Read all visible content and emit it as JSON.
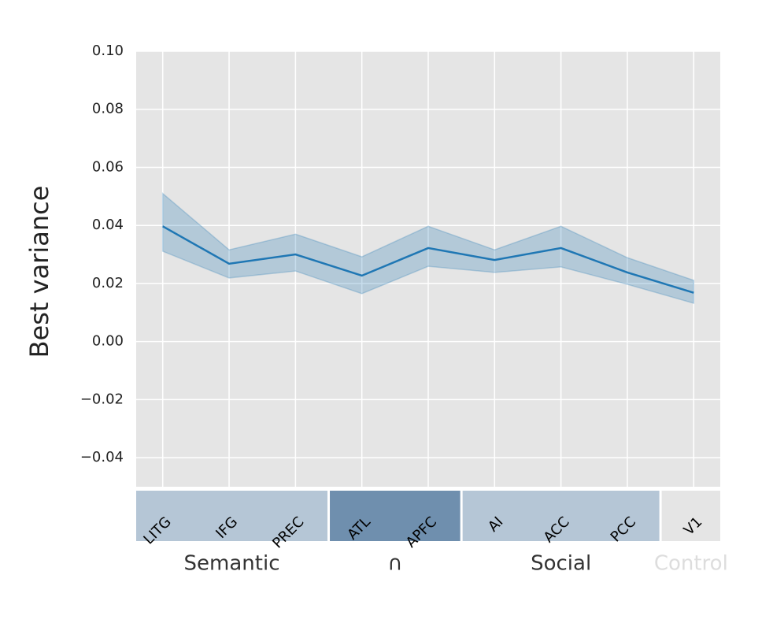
{
  "chart_data": {
    "type": "line",
    "ylabel": "Best variance",
    "ylim": [
      -0.05,
      0.1
    ],
    "yticks": [
      {
        "value": -0.04,
        "label": "−0.04"
      },
      {
        "value": -0.02,
        "label": "−0.02"
      },
      {
        "value": 0,
        "label": "0.00"
      },
      0.02,
      0.04,
      0.06,
      0.08,
      {
        "value": 0.1,
        "label": "0.10"
      }
    ],
    "grid": true,
    "groups": [
      {
        "name": "Semantic",
        "color": "#b5c6d6",
        "label_color": "#333333",
        "categories": [
          "LITG",
          "IFG",
          "PREC"
        ]
      },
      {
        "name": "∩",
        "color": "#6f8fae",
        "label_color": "#333333",
        "categories": [
          "ATL",
          "APFC"
        ]
      },
      {
        "name": "Social",
        "color": "#b5c6d6",
        "label_color": "#333333",
        "categories": [
          "AI",
          "ACC",
          "PCC"
        ]
      },
      {
        "name": "Control",
        "color": "#e5e5e5",
        "label_color": "#dddddd",
        "categories": [
          "V1"
        ]
      }
    ],
    "series": [
      {
        "color": "#1f77b4",
        "values": [
          0.0397,
          0.0268,
          0.03,
          0.0227,
          0.0322,
          0.0281,
          0.0322,
          0.0238,
          0.0168
        ],
        "upper": [
          0.051,
          0.0316,
          0.037,
          0.0292,
          0.0397,
          0.0316,
          0.0397,
          0.0289,
          0.0211
        ],
        "lower": [
          0.0311,
          0.0219,
          0.0243,
          0.0165,
          0.0259,
          0.0238,
          0.0257,
          0.0197,
          0.0132
        ]
      }
    ]
  }
}
